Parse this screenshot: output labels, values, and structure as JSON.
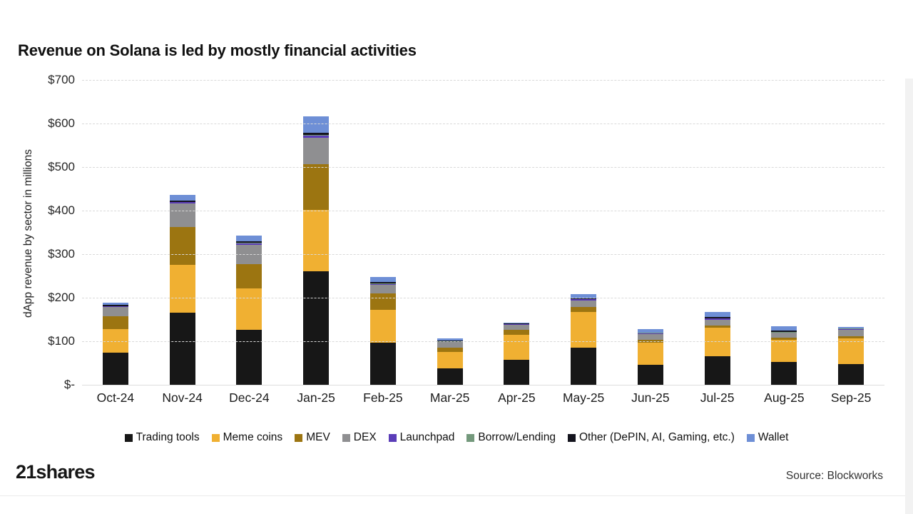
{
  "title": "Revenue on Solana is led by mostly financial activities",
  "y_axis_title": "dApp revenue by sector in millions",
  "footer": {
    "logo": "21shares",
    "source": "Source: Blockworks"
  },
  "chart_data": {
    "type": "bar",
    "stacked": true,
    "grid": "dashed-horizontal",
    "legend_position": "bottom",
    "ylim": [
      0,
      700
    ],
    "y_ticks": [
      "$700",
      "$600",
      "$500",
      "$400",
      "$300",
      "$200",
      "$100",
      "$-"
    ],
    "categories": [
      "Oct-24",
      "Nov-24",
      "Dec-24",
      "Jan-25",
      "Feb-25",
      "Mar-25",
      "Apr-25",
      "May-25",
      "Jun-25",
      "Jul-25",
      "Aug-25",
      "Sep-25"
    ],
    "series": [
      {
        "name": "Trading tools",
        "color": "#171717",
        "values": [
          73,
          166,
          126,
          261,
          97,
          38,
          57,
          86,
          46,
          65,
          52,
          48
        ]
      },
      {
        "name": "Meme coins",
        "color": "#F0B032",
        "values": [
          55,
          110,
          96,
          140,
          75,
          37,
          58,
          82,
          51,
          66,
          51,
          59
        ]
      },
      {
        "name": "MEV",
        "color": "#9C7511",
        "values": [
          30,
          86,
          55,
          105,
          38,
          10,
          12,
          11,
          7,
          5,
          5,
          4
        ]
      },
      {
        "name": "DEX",
        "color": "#8F8F91",
        "values": [
          20,
          54,
          45,
          62,
          19,
          13,
          11,
          15,
          13,
          14,
          11,
          16
        ]
      },
      {
        "name": "Launchpad",
        "color": "#5B3DB8",
        "values": [
          2,
          3,
          3,
          5,
          3,
          1,
          1,
          2,
          1,
          2,
          1,
          1
        ]
      },
      {
        "name": "Borrow/Lending",
        "color": "#74997C",
        "values": [
          1,
          1,
          1,
          1,
          1,
          1,
          1,
          1,
          1,
          1,
          1,
          1
        ]
      },
      {
        "name": "Other (DePIN, AI, Gaming, etc.)",
        "color": "#14141E",
        "values": [
          2,
          3,
          3,
          5,
          3,
          1,
          1,
          1,
          1,
          3,
          3,
          1
        ]
      },
      {
        "name": "Wallet",
        "color": "#6E8FD6",
        "values": [
          5,
          13,
          14,
          38,
          12,
          5,
          2,
          10,
          8,
          11,
          10,
          3
        ]
      }
    ]
  }
}
